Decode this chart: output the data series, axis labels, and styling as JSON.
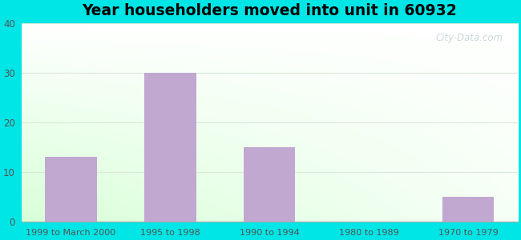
{
  "categories": [
    "1999 to March 2000",
    "1995 to 1998",
    "1990 to 1994",
    "1980 to 1989",
    "1970 to 1979"
  ],
  "values": [
    13,
    30,
    15,
    0,
    5
  ],
  "bar_color": "#c0a8d0",
  "title": "Year householders moved into unit in 60932",
  "title_fontsize": 13.5,
  "ylim": [
    0,
    40
  ],
  "yticks": [
    0,
    10,
    20,
    30,
    40
  ],
  "background_outer": "#00e5e5",
  "bar_width": 0.52,
  "watermark": "City-Data.com",
  "tick_color": "#555555",
  "xlabel_color": "#555555"
}
